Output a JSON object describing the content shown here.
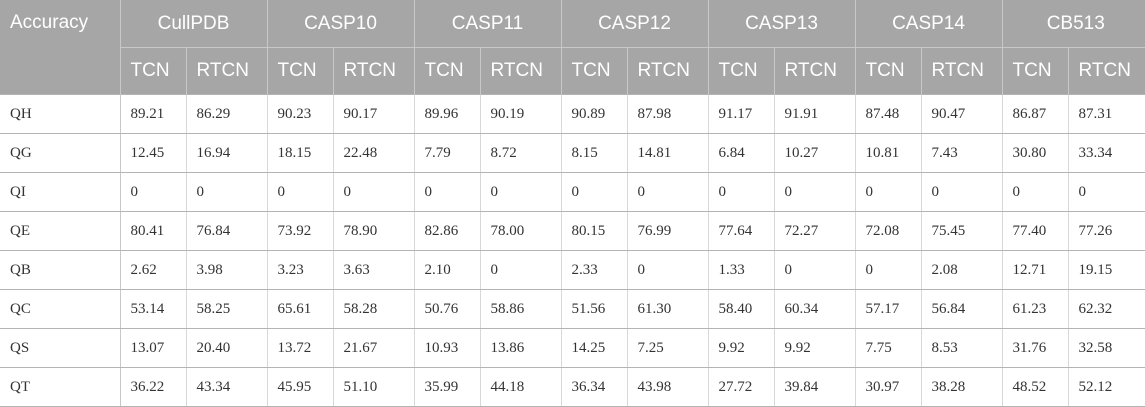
{
  "table": {
    "corner_label": "Accuracy",
    "groups": [
      "CullPDB",
      "CASP10",
      "CASP11",
      "CASP12",
      "CASP13",
      "CASP14",
      "CB513"
    ],
    "sub_headers": [
      "TCN",
      "RTCN"
    ],
    "rows": [
      {
        "label": "QH",
        "values": [
          "89.21",
          "86.29",
          "90.23",
          "90.17",
          "89.96",
          "90.19",
          "90.89",
          "87.98",
          "91.17",
          "91.91",
          "87.48",
          "90.47",
          "86.87",
          "87.31"
        ]
      },
      {
        "label": "QG",
        "values": [
          "12.45",
          "16.94",
          "18.15",
          "22.48",
          "7.79",
          "8.72",
          "8.15",
          "14.81",
          "6.84",
          "10.27",
          "10.81",
          "7.43",
          "30.80",
          "33.34"
        ]
      },
      {
        "label": "QI",
        "values": [
          "0",
          "0",
          "0",
          "0",
          "0",
          "0",
          "0",
          "0",
          "0",
          "0",
          "0",
          "0",
          "0",
          "0"
        ]
      },
      {
        "label": "QE",
        "values": [
          "80.41",
          "76.84",
          "73.92",
          "78.90",
          "82.86",
          "78.00",
          "80.15",
          "76.99",
          "77.64",
          "72.27",
          "72.08",
          "75.45",
          "77.40",
          "77.26"
        ]
      },
      {
        "label": "QB",
        "values": [
          "2.62",
          "3.98",
          "3.23",
          "3.63",
          "2.10",
          "0",
          "2.33",
          "0",
          "1.33",
          "0",
          "0",
          "2.08",
          "12.71",
          "19.15"
        ]
      },
      {
        "label": "QC",
        "values": [
          "53.14",
          "58.25",
          "65.61",
          "58.28",
          "50.76",
          "58.86",
          "51.56",
          "61.30",
          "58.40",
          "60.34",
          "57.17",
          "56.84",
          "61.23",
          "62.32"
        ]
      },
      {
        "label": "QS",
        "values": [
          "13.07",
          "20.40",
          "13.72",
          "21.67",
          "10.93",
          "13.86",
          "14.25",
          "7.25",
          "9.92",
          "9.92",
          "7.75",
          "8.53",
          "31.76",
          "32.58"
        ]
      },
      {
        "label": "QT",
        "values": [
          "36.22",
          "43.34",
          "45.95",
          "51.10",
          "35.99",
          "44.18",
          "36.34",
          "43.98",
          "27.72",
          "39.84",
          "30.97",
          "38.28",
          "48.52",
          "52.12"
        ]
      }
    ]
  }
}
